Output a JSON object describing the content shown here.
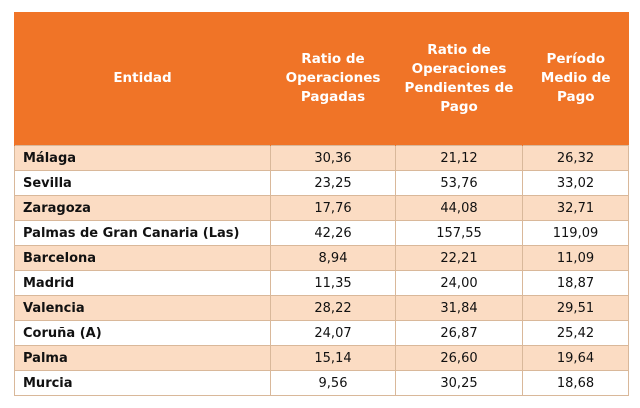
{
  "table": {
    "headers": [
      "Entidad",
      "Ratio de Operaciones Pagadas",
      "Ratio de Operaciones Pendientes de Pago",
      "Período Medio de Pago"
    ],
    "rows": [
      [
        "Málaga",
        "30,36",
        "21,12",
        "26,32"
      ],
      [
        "Sevilla",
        "23,25",
        "53,76",
        "33,02"
      ],
      [
        "Zaragoza",
        "17,76",
        "44,08",
        "32,71"
      ],
      [
        "Palmas de Gran Canaria (Las)",
        "42,26",
        "157,55",
        "119,09"
      ],
      [
        "Barcelona",
        "8,94",
        "22,21",
        "11,09"
      ],
      [
        "Madrid",
        "11,35",
        "24,00",
        "18,87"
      ],
      [
        "Valencia",
        "28,22",
        "31,84",
        "29,51"
      ],
      [
        "Coruña (A)",
        "24,07",
        "26,87",
        "25,42"
      ],
      [
        "Palma",
        "15,14",
        "26,60",
        "19,64"
      ],
      [
        "Murcia",
        "9,56",
        "30,25",
        "18,68"
      ]
    ]
  },
  "colors": {
    "header": "#f07427",
    "row_shade": "#fbdcc3",
    "border": "#d9b89a"
  }
}
